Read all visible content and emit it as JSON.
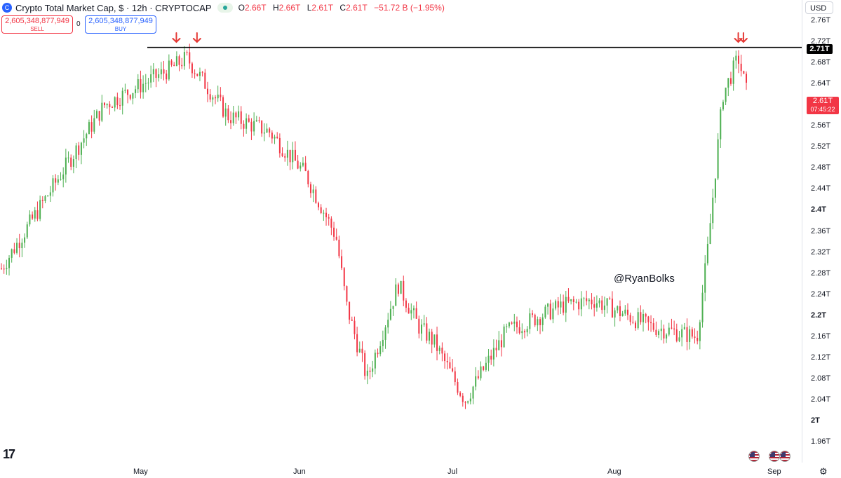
{
  "header": {
    "title": "Crypto Total Market Cap, $ · 12h · CRYPTOCAP",
    "ohlc": [
      {
        "key": "O",
        "value": "2.66T"
      },
      {
        "key": "H",
        "value": "2.66T"
      },
      {
        "key": "L",
        "value": "2.61T"
      },
      {
        "key": "C",
        "value": "2.61T"
      }
    ],
    "change": "−51.72 B (−1.95%)"
  },
  "trade": {
    "sell_price": "2,605,348,877,949",
    "sell_label": "SELL",
    "spread": "0",
    "buy_price": "2,605,348,877,949",
    "buy_label": "BUY"
  },
  "axis": {
    "currency": "USD",
    "level_label": "2.71T",
    "last_price_label": "2.61T",
    "countdown": "07:45:22"
  },
  "watermark": "@RyanBolks",
  "colors": {
    "up": "#4caf50",
    "down": "#f23645",
    "resistance": "#000000",
    "arrow": "#e53935"
  },
  "chart_data": {
    "type": "candlestick",
    "title": "Crypto Total Market Cap",
    "unit": "USD (trillions)",
    "y_ticks": [
      "2.76T",
      "2.72T",
      "2.68T",
      "2.64T",
      "2.6T",
      "2.56T",
      "2.52T",
      "2.48T",
      "2.44T",
      "2.4T",
      "2.36T",
      "2.32T",
      "2.28T",
      "2.24T",
      "2.2T",
      "2.16T",
      "2.12T",
      "2.08T",
      "2.04T",
      "2T",
      "1.96T"
    ],
    "bold_ticks": [
      "2.4T",
      "2.2T",
      "2T"
    ],
    "x_ticks": [
      "May",
      "Jun",
      "Jul",
      "Aug",
      "Sep"
    ],
    "ylim": [
      1.94,
      2.78
    ],
    "resistance_level": 2.71,
    "last_price": 2.61,
    "grid": false,
    "anchors_x": [
      "start",
      "Apr 24",
      "May 7",
      "May 10",
      "May 18",
      "May 26",
      "Jun 2",
      "Jun 8",
      "Jun 10",
      "Jun 14",
      "Jun 20",
      "Jun 24",
      "Jun 27",
      "Jul 3",
      "Jul 11",
      "Jul 22",
      "Jul 28",
      "Aug 8",
      "Aug 17",
      "Aug 19",
      "Aug 22",
      "Aug 25",
      "Aug 27"
    ],
    "anchors_y": [
      2.29,
      2.6,
      2.67,
      2.69,
      2.58,
      2.55,
      2.47,
      2.35,
      2.22,
      2.08,
      2.26,
      2.18,
      2.15,
      2.04,
      2.17,
      2.22,
      2.23,
      2.18,
      2.16,
      2.32,
      2.62,
      2.69,
      2.61
    ],
    "arrow_marks": [
      "May 8",
      "May 12",
      "Aug 25",
      "Aug 26"
    ]
  }
}
